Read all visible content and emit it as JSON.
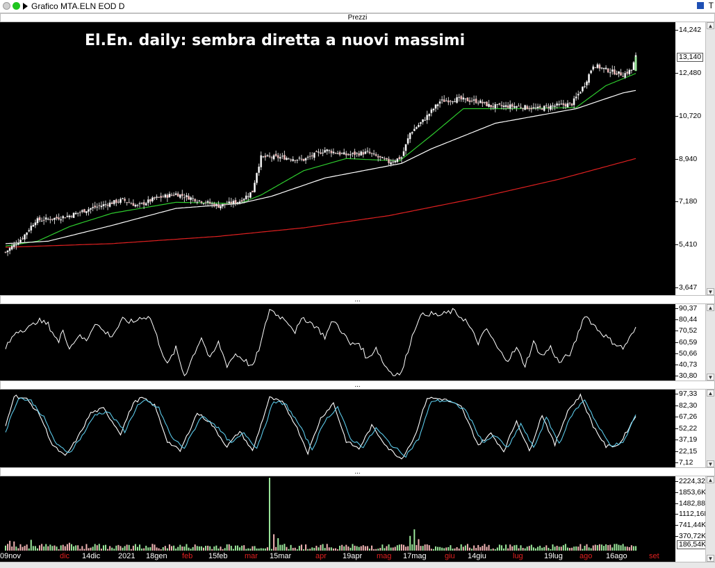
{
  "window": {
    "title": "Grafico MTA.ELN EOD D",
    "corner_label": "T"
  },
  "panes": {
    "price": {
      "header": "Prezzi",
      "title": "El.En. daily: sembra diretta a nuovi massimi",
      "last_value": "13,140"
    },
    "rsi": {
      "header": "..."
    },
    "stoch": {
      "header": "..."
    },
    "volume": {
      "header": "...",
      "last_value": "186,54K"
    }
  },
  "colors": {
    "background": "#000000",
    "ma_fast": "#2ecc2e",
    "ma_mid": "#ffffff",
    "ma_slow": "#e02020",
    "stoch_k": "#ffffff",
    "stoch_d": "#5bc8e8",
    "volume_up": "#9be89b",
    "volume_down": "#f2b5b5"
  },
  "icons": {
    "close": "close-dot-icon",
    "maximize": "maximize-dot-icon",
    "menu": "menu-arrow-icon",
    "square": "window-square-icon"
  },
  "chart_data": [
    {
      "type": "candlestick",
      "pane": "price",
      "title": "El.En. daily: sembra diretta a nuovi massimi",
      "ylim": [
        3.647,
        14.242
      ],
      "y_ticks": [
        "14,242",
        "12,480",
        "10,720",
        "8,940",
        "7,180",
        "5,410",
        "3,647"
      ],
      "x_ticks": [
        {
          "label": "09nov",
          "red": false
        },
        {
          "label": "dic",
          "red": true
        },
        {
          "label": "14dic",
          "red": false
        },
        {
          "label": "2021",
          "red": false
        },
        {
          "label": "18gen",
          "red": false
        },
        {
          "label": "feb",
          "red": true
        },
        {
          "label": "15feb",
          "red": false
        },
        {
          "label": "mar",
          "red": true
        },
        {
          "label": "15mar",
          "red": false
        },
        {
          "label": "apr",
          "red": true
        },
        {
          "label": "19apr",
          "red": false
        },
        {
          "label": "mag",
          "red": true
        },
        {
          "label": "17mag",
          "red": false
        },
        {
          "label": "giu",
          "red": true
        },
        {
          "label": "14giu",
          "red": false
        },
        {
          "label": "lug",
          "red": true
        },
        {
          "label": "19lug",
          "red": false
        },
        {
          "label": "ago",
          "red": true
        },
        {
          "label": "16ago",
          "red": false
        },
        {
          "label": "set",
          "red": true
        }
      ],
      "close_keypoints": [
        [
          0,
          5.1
        ],
        [
          8,
          5.7
        ],
        [
          14,
          6.4
        ],
        [
          24,
          6.5
        ],
        [
          30,
          6.6
        ],
        [
          40,
          6.9
        ],
        [
          55,
          7.25
        ],
        [
          62,
          7.0
        ],
        [
          70,
          7.3
        ],
        [
          80,
          7.5
        ],
        [
          90,
          7.25
        ],
        [
          100,
          7.0
        ],
        [
          110,
          7.2
        ],
        [
          116,
          7.6
        ],
        [
          118,
          8.4
        ],
        [
          120,
          9.0
        ],
        [
          130,
          9.0
        ],
        [
          140,
          8.9
        ],
        [
          150,
          9.3
        ],
        [
          160,
          9.1
        ],
        [
          170,
          9.2
        ],
        [
          180,
          8.8
        ],
        [
          186,
          9.0
        ],
        [
          190,
          10.0
        ],
        [
          196,
          10.5
        ],
        [
          204,
          11.3
        ],
        [
          212,
          11.4
        ],
        [
          222,
          11.3
        ],
        [
          228,
          11.1
        ],
        [
          240,
          11.1
        ],
        [
          250,
          11.0
        ],
        [
          256,
          11.1
        ],
        [
          266,
          11.2
        ],
        [
          272,
          12.0
        ],
        [
          276,
          12.8
        ],
        [
          282,
          12.6
        ],
        [
          290,
          12.4
        ],
        [
          294,
          12.6
        ],
        [
          296,
          13.14
        ]
      ],
      "last_close": 13.14,
      "overlays": [
        {
          "name": "",
          "color": "#2ecc2e",
          "points": [
            [
              0,
              5.35
            ],
            [
              15,
              5.55
            ],
            [
              30,
              6.15
            ],
            [
              50,
              6.7
            ],
            [
              80,
              7.15
            ],
            [
              110,
              7.1
            ],
            [
              120,
              7.45
            ],
            [
              140,
              8.45
            ],
            [
              160,
              8.95
            ],
            [
              185,
              8.85
            ],
            [
              200,
              9.9
            ],
            [
              215,
              11.0
            ],
            [
              240,
              11.0
            ],
            [
              268,
              11.05
            ],
            [
              282,
              11.95
            ],
            [
              296,
              12.45
            ]
          ]
        },
        {
          "name": "",
          "color": "#ffffff",
          "points": [
            [
              0,
              5.45
            ],
            [
              20,
              5.55
            ],
            [
              50,
              6.2
            ],
            [
              80,
              6.9
            ],
            [
              110,
              7.1
            ],
            [
              125,
              7.4
            ],
            [
              150,
              8.15
            ],
            [
              186,
              8.75
            ],
            [
              200,
              9.35
            ],
            [
              230,
              10.4
            ],
            [
              268,
              11.0
            ],
            [
              290,
              11.65
            ],
            [
              296,
              11.75
            ]
          ]
        },
        {
          "name": "",
          "color": "#e02020",
          "points": [
            [
              0,
              5.3
            ],
            [
              50,
              5.45
            ],
            [
              100,
              5.75
            ],
            [
              140,
              6.1
            ],
            [
              180,
              6.6
            ],
            [
              220,
              7.3
            ],
            [
              260,
              8.1
            ],
            [
              296,
              8.95
            ]
          ]
        }
      ]
    },
    {
      "type": "line",
      "pane": "rsi",
      "ylim": [
        30.8,
        90.37
      ],
      "y_ticks": [
        "90,37",
        "80,44",
        "70,52",
        "60,59",
        "50,66",
        "40,73",
        "30,80"
      ],
      "series": [
        {
          "name": "",
          "color": "#ffffff",
          "keypoints": [
            [
              0,
              55
            ],
            [
              5,
              70
            ],
            [
              12,
              74
            ],
            [
              15,
              80
            ],
            [
              20,
              76
            ],
            [
              25,
              60
            ],
            [
              27,
              72
            ],
            [
              30,
              55
            ],
            [
              34,
              66
            ],
            [
              38,
              62
            ],
            [
              42,
              78
            ],
            [
              46,
              70
            ],
            [
              50,
              66
            ],
            [
              55,
              80
            ],
            [
              60,
              78
            ],
            [
              64,
              83
            ],
            [
              68,
              82
            ],
            [
              72,
              60
            ],
            [
              76,
              40
            ],
            [
              80,
              55
            ],
            [
              84,
              30
            ],
            [
              88,
              48
            ],
            [
              92,
              65
            ],
            [
              96,
              45
            ],
            [
              100,
              60
            ],
            [
              104,
              40
            ],
            [
              108,
              50
            ],
            [
              112,
              45
            ],
            [
              116,
              38
            ],
            [
              120,
              60
            ],
            [
              124,
              90
            ],
            [
              128,
              84
            ],
            [
              132,
              80
            ],
            [
              136,
              70
            ],
            [
              140,
              82
            ],
            [
              146,
              74
            ],
            [
              150,
              65
            ],
            [
              154,
              80
            ],
            [
              158,
              70
            ],
            [
              162,
              58
            ],
            [
              166,
              60
            ],
            [
              170,
              45
            ],
            [
              174,
              56
            ],
            [
              178,
              40
            ],
            [
              182,
              32
            ],
            [
              186,
              33
            ],
            [
              190,
              60
            ],
            [
              194,
              82
            ],
            [
              198,
              86
            ],
            [
              204,
              84
            ],
            [
              210,
              88
            ],
            [
              216,
              80
            ],
            [
              222,
              60
            ],
            [
              226,
              72
            ],
            [
              232,
              52
            ],
            [
              236,
              45
            ],
            [
              240,
              55
            ],
            [
              244,
              40
            ],
            [
              248,
              60
            ],
            [
              252,
              48
            ],
            [
              256,
              56
            ],
            [
              260,
              42
            ],
            [
              266,
              52
            ],
            [
              272,
              85
            ],
            [
              278,
              72
            ],
            [
              284,
              62
            ],
            [
              290,
              55
            ],
            [
              296,
              72
            ]
          ]
        }
      ]
    },
    {
      "type": "line",
      "pane": "stoch",
      "ylim": [
        7.12,
        97.33
      ],
      "y_ticks": [
        "97,33",
        "82,30",
        "67,26",
        "52,22",
        "37,19",
        "22,15",
        "7,12"
      ],
      "series": [
        {
          "name": "",
          "color": "#ffffff",
          "keypoints": [
            [
              0,
              55
            ],
            [
              4,
              95
            ],
            [
              10,
              90
            ],
            [
              16,
              70
            ],
            [
              22,
              30
            ],
            [
              28,
              15
            ],
            [
              34,
              40
            ],
            [
              40,
              72
            ],
            [
              46,
              78
            ],
            [
              54,
              45
            ],
            [
              60,
              85
            ],
            [
              64,
              92
            ],
            [
              70,
              82
            ],
            [
              76,
              35
            ],
            [
              82,
              22
            ],
            [
              90,
              72
            ],
            [
              96,
              60
            ],
            [
              104,
              28
            ],
            [
              110,
              48
            ],
            [
              116,
              22
            ],
            [
              124,
              92
            ],
            [
              130,
              86
            ],
            [
              136,
              58
            ],
            [
              142,
              20
            ],
            [
              148,
              65
            ],
            [
              154,
              85
            ],
            [
              160,
              35
            ],
            [
              166,
              25
            ],
            [
              172,
              55
            ],
            [
              180,
              25
            ],
            [
              186,
              12
            ],
            [
              192,
              40
            ],
            [
              198,
              92
            ],
            [
              206,
              90
            ],
            [
              214,
              80
            ],
            [
              222,
              30
            ],
            [
              228,
              45
            ],
            [
              234,
              22
            ],
            [
              240,
              62
            ],
            [
              246,
              22
            ],
            [
              252,
              70
            ],
            [
              258,
              30
            ],
            [
              264,
              75
            ],
            [
              270,
              95
            ],
            [
              276,
              55
            ],
            [
              282,
              28
            ],
            [
              288,
              30
            ],
            [
              296,
              68
            ]
          ]
        },
        {
          "name": "",
          "color": "#5bc8e8",
          "keypoints": [
            [
              0,
              48
            ],
            [
              6,
              92
            ],
            [
              12,
              88
            ],
            [
              18,
              66
            ],
            [
              24,
              30
            ],
            [
              30,
              20
            ],
            [
              36,
              42
            ],
            [
              42,
              70
            ],
            [
              48,
              74
            ],
            [
              56,
              48
            ],
            [
              62,
              82
            ],
            [
              66,
              88
            ],
            [
              72,
              78
            ],
            [
              78,
              40
            ],
            [
              84,
              26
            ],
            [
              92,
              68
            ],
            [
              98,
              58
            ],
            [
              106,
              32
            ],
            [
              112,
              46
            ],
            [
              118,
              26
            ],
            [
              126,
              88
            ],
            [
              132,
              82
            ],
            [
              138,
              56
            ],
            [
              144,
              24
            ],
            [
              150,
              62
            ],
            [
              156,
              80
            ],
            [
              162,
              38
            ],
            [
              168,
              28
            ],
            [
              174,
              52
            ],
            [
              182,
              28
            ],
            [
              188,
              16
            ],
            [
              194,
              38
            ],
            [
              200,
              88
            ],
            [
              208,
              88
            ],
            [
              216,
              76
            ],
            [
              224,
              34
            ],
            [
              230,
              42
            ],
            [
              236,
              26
            ],
            [
              242,
              58
            ],
            [
              248,
              26
            ],
            [
              254,
              66
            ],
            [
              260,
              32
            ],
            [
              266,
              70
            ],
            [
              272,
              90
            ],
            [
              278,
              56
            ],
            [
              284,
              30
            ],
            [
              290,
              32
            ],
            [
              296,
              70
            ]
          ]
        }
      ]
    },
    {
      "type": "bar",
      "pane": "volume",
      "ylim": [
        0,
        2224.32
      ],
      "unit": "K",
      "y_ticks": [
        "2224,32K",
        "1853,6K",
        "1482,88K",
        "1112,16K",
        "741,44K",
        "370,72K"
      ],
      "spikes": [
        [
          2,
          300
        ],
        [
          4,
          280
        ],
        [
          12,
          330
        ],
        [
          30,
          240
        ],
        [
          60,
          150
        ],
        [
          124,
          2224
        ],
        [
          126,
          500
        ],
        [
          128,
          380
        ],
        [
          190,
          450
        ],
        [
          192,
          650
        ],
        [
          194,
          350
        ],
        [
          260,
          120
        ],
        [
          270,
          200
        ],
        [
          284,
          180
        ]
      ]
    }
  ]
}
